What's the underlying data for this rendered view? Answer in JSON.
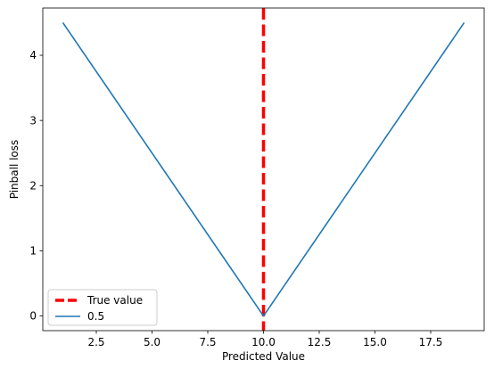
{
  "chart_data": {
    "type": "line",
    "title": "",
    "xlabel": "Predicted Value",
    "ylabel": "Pinball loss",
    "xlim": [
      0.1,
      19.9
    ],
    "ylim": [
      -0.225,
      4.725
    ],
    "xticks": [
      2.5,
      5.0,
      7.5,
      10.0,
      12.5,
      15.0,
      17.5
    ],
    "xtick_labels": [
      "2.5",
      "5.0",
      "7.5",
      "10.0",
      "12.5",
      "15.0",
      "17.5"
    ],
    "yticks": [
      0,
      1,
      2,
      3,
      4
    ],
    "ytick_labels": [
      "0",
      "1",
      "2",
      "3",
      "4"
    ],
    "grid": false,
    "legend_position": "lower-left",
    "series": [
      {
        "name": "0.5",
        "color": "#1f77b4",
        "style": "solid",
        "x": [
          1,
          10,
          19
        ],
        "y": [
          4.5,
          0.0,
          4.5
        ]
      }
    ],
    "vlines": [
      {
        "name": "True value",
        "x": 10,
        "color": "#ff0000",
        "style": "dashed"
      }
    ]
  }
}
